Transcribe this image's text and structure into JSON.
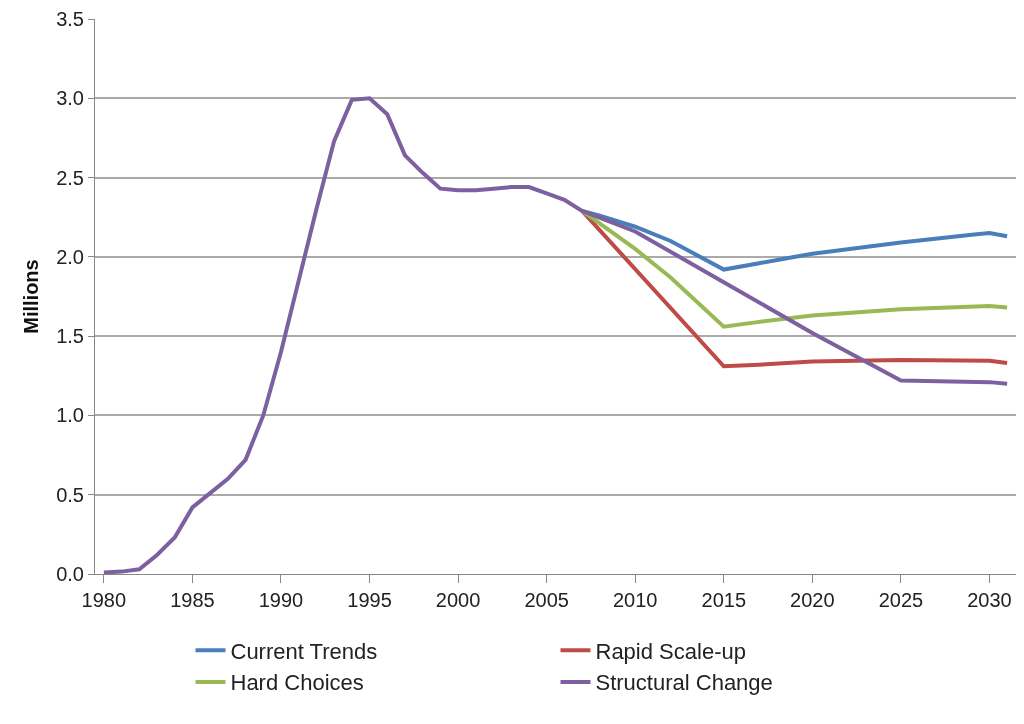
{
  "chart_data": {
    "type": "line",
    "ylabel": "Millions",
    "xlim": [
      1979.5,
      2031.5
    ],
    "xticks": [
      1980,
      1985,
      1990,
      1995,
      2000,
      2005,
      2010,
      2015,
      2020,
      2025,
      2030
    ],
    "ylim": [
      0,
      3.5
    ],
    "yticks": [
      {
        "value": 0,
        "label": "0.0"
      },
      {
        "value": 0.5,
        "label": "0.5"
      },
      {
        "value": 1,
        "label": "1.0"
      },
      {
        "value": 1.5,
        "label": "1.5"
      },
      {
        "value": 2,
        "label": "2.0"
      },
      {
        "value": 2.5,
        "label": "2.5"
      },
      {
        "value": 3,
        "label": "3.0"
      },
      {
        "value": 3.5,
        "label": "3.5"
      }
    ],
    "grid": "y",
    "legend": "bottom",
    "marker": "none",
    "line_style": "solid",
    "series": [
      {
        "name": "Current Trends",
        "color": "#4a7ebb",
        "x": [
          2007,
          2008,
          2010,
          2012,
          2015,
          2017,
          2020,
          2025,
          2029,
          2030,
          2031
        ],
        "values": [
          2.29,
          2.26,
          2.19,
          2.1,
          1.92,
          1.96,
          2.02,
          2.09,
          2.14,
          2.15,
          2.13
        ]
      },
      {
        "name": "Rapid Scale-up",
        "color": "#be4b48",
        "x": [
          2007,
          2015,
          2017,
          2020,
          2025,
          2030,
          2031
        ],
        "values": [
          2.29,
          1.31,
          1.32,
          1.34,
          1.35,
          1.345,
          1.33
        ]
      },
      {
        "name": "Hard Choices",
        "color": "#98b954",
        "x": [
          2007,
          2010,
          2012,
          2015,
          2017,
          2020,
          2025,
          2030,
          2031
        ],
        "values": [
          2.29,
          2.05,
          1.87,
          1.56,
          1.59,
          1.63,
          1.67,
          1.69,
          1.68
        ]
      },
      {
        "name": "Structural Change",
        "color": "#7d60a0",
        "x": [
          1980,
          1981,
          1982,
          1983,
          1984,
          1985,
          1986,
          1987,
          1988,
          1989,
          1990,
          1991,
          1992,
          1993,
          1994,
          1995,
          1996,
          1997,
          1998,
          1999,
          2000,
          2001,
          2002,
          2003,
          2004,
          2005,
          2006,
          2007,
          2010,
          2015,
          2020,
          2025,
          2030,
          2031
        ],
        "values": [
          0.01,
          0.015,
          0.03,
          0.12,
          0.23,
          0.42,
          0.51,
          0.6,
          0.72,
          1.0,
          1.4,
          1.85,
          2.3,
          2.73,
          2.99,
          3.0,
          2.9,
          2.64,
          2.53,
          2.43,
          2.42,
          2.42,
          2.43,
          2.44,
          2.44,
          2.4,
          2.36,
          2.29,
          2.16,
          1.84,
          1.52,
          1.22,
          1.21,
          1.2
        ]
      }
    ]
  }
}
